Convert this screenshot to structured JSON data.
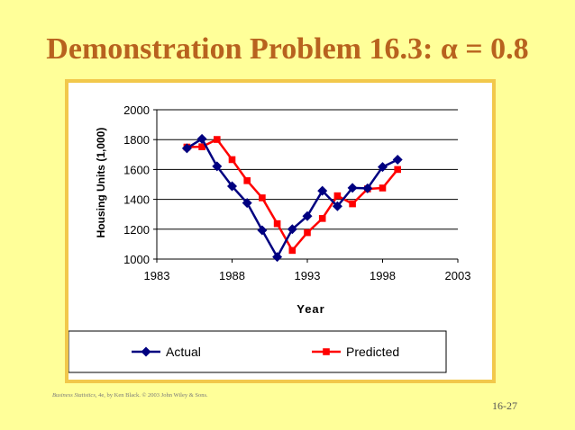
{
  "slide": {
    "title": "Demonstration Problem 16.3: α = 0.8",
    "footer_book": "Business Statistics",
    "footer_rest": ", 4e, by Ken Black. © 2003 John Wiley & Sons.",
    "page_number": "16-27"
  },
  "colors": {
    "background": "#FFFF99",
    "title": "#B8621E",
    "frame": "#F2C84B",
    "actual": "#000080",
    "predicted": "#FF0000"
  },
  "chart_data": {
    "type": "line",
    "title": "",
    "xlabel": "Year",
    "ylabel": "Housing Units (1,000)",
    "xlim": [
      1983,
      2003
    ],
    "ylim": [
      1000,
      2000
    ],
    "x_ticks": [
      1983,
      1988,
      1993,
      1998,
      2003
    ],
    "y_ticks": [
      1000,
      1200,
      1400,
      1600,
      1800,
      2000
    ],
    "grid": true,
    "legend_position": "bottom",
    "series": [
      {
        "name": "Actual",
        "marker": "diamond",
        "x": [
          1985,
          1986,
          1987,
          1988,
          1989,
          1990,
          1991,
          1992,
          1993,
          1994,
          1995,
          1996,
          1997,
          1998,
          1999
        ],
        "y": [
          1742,
          1805,
          1621,
          1488,
          1376,
          1193,
          1014,
          1200,
          1288,
          1457,
          1354,
          1477,
          1474,
          1617,
          1666
        ]
      },
      {
        "name": "Predicted",
        "marker": "square",
        "x": [
          1985,
          1986,
          1987,
          1988,
          1989,
          1990,
          1991,
          1992,
          1993,
          1994,
          1995,
          1996,
          1997,
          1998,
          1999
        ],
        "y": [
          1750,
          1752,
          1801,
          1666,
          1525,
          1410,
          1237,
          1058,
          1177,
          1272,
          1424,
          1370,
          1470,
          1476,
          1600
        ]
      }
    ]
  }
}
